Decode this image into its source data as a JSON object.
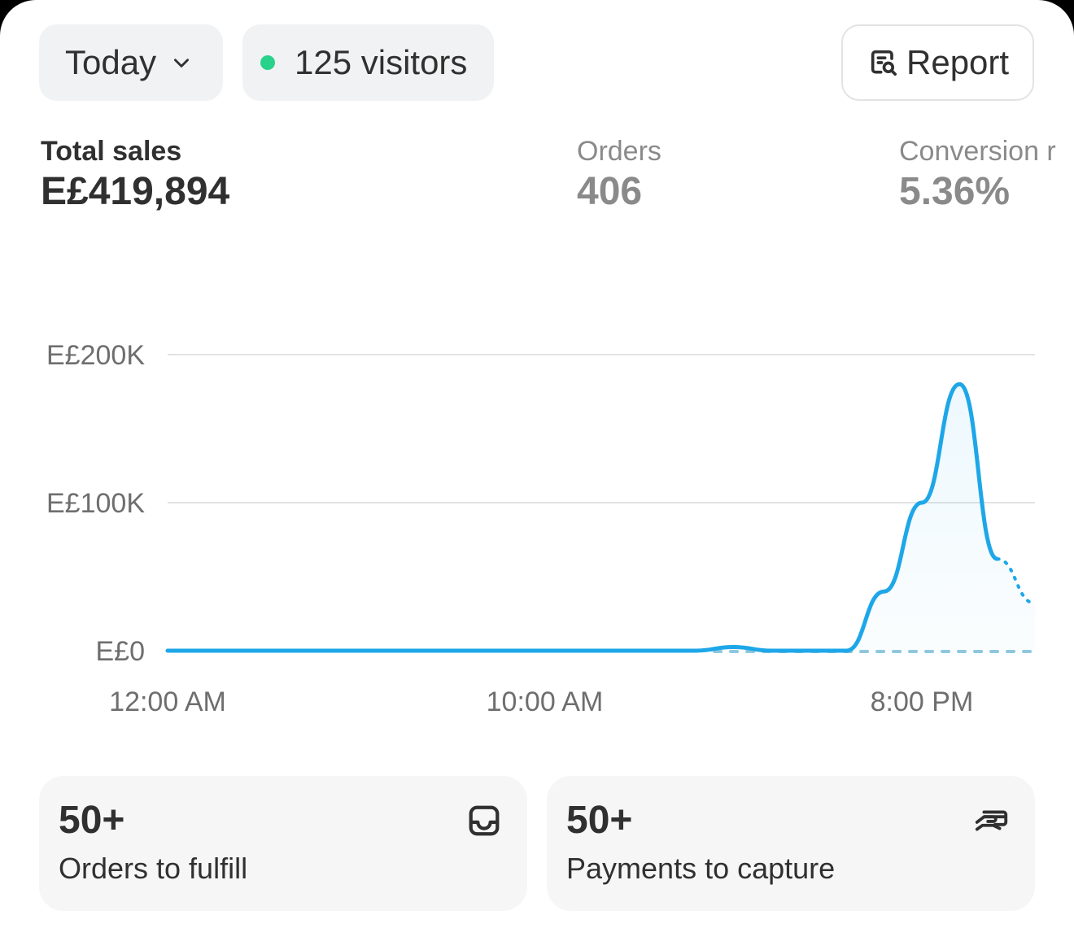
{
  "toolbar": {
    "date_range_label": "Today",
    "visitors_label": "125 visitors",
    "report_label": "Report"
  },
  "metrics": {
    "total_sales": {
      "label": "Total sales",
      "value": "E£419,894"
    },
    "orders": {
      "label": "Orders",
      "value": "406"
    },
    "conversion": {
      "label": "Conversion r",
      "value": "5.36%"
    }
  },
  "chart_data": {
    "type": "line",
    "y_ticks": [
      "E£200K",
      "E£100K",
      "E£0"
    ],
    "x_ticks": [
      "12:00 AM",
      "10:00 AM",
      "8:00 PM"
    ],
    "ylim": [
      0,
      200000
    ],
    "series": [
      {
        "x": [
          0,
          1,
          2,
          3,
          4,
          5,
          6,
          7,
          8,
          9,
          10,
          11,
          12,
          13,
          14,
          15,
          16,
          17,
          18,
          19,
          20,
          21,
          22
        ],
        "values": [
          0,
          0,
          0,
          0,
          0,
          0,
          0,
          0,
          0,
          0,
          0,
          0,
          0,
          0,
          0,
          2500,
          0,
          0,
          0,
          40000,
          100000,
          180000,
          62000
        ]
      }
    ],
    "projection": {
      "x": [
        22,
        23
      ],
      "values": [
        62000,
        32000
      ]
    },
    "comparison": {
      "x": [
        14.5,
        23
      ],
      "values": [
        0,
        0
      ]
    },
    "colors": {
      "line": "#1ea7e8",
      "comparison": "#8ec7de",
      "grid": "#e3e3e3"
    }
  },
  "tiles": {
    "fulfill": {
      "count": "50+",
      "label": "Orders to fulfill",
      "icon": "inbox-icon"
    },
    "capture": {
      "count": "50+",
      "label": "Payments to capture",
      "icon": "hand-card-icon"
    }
  }
}
